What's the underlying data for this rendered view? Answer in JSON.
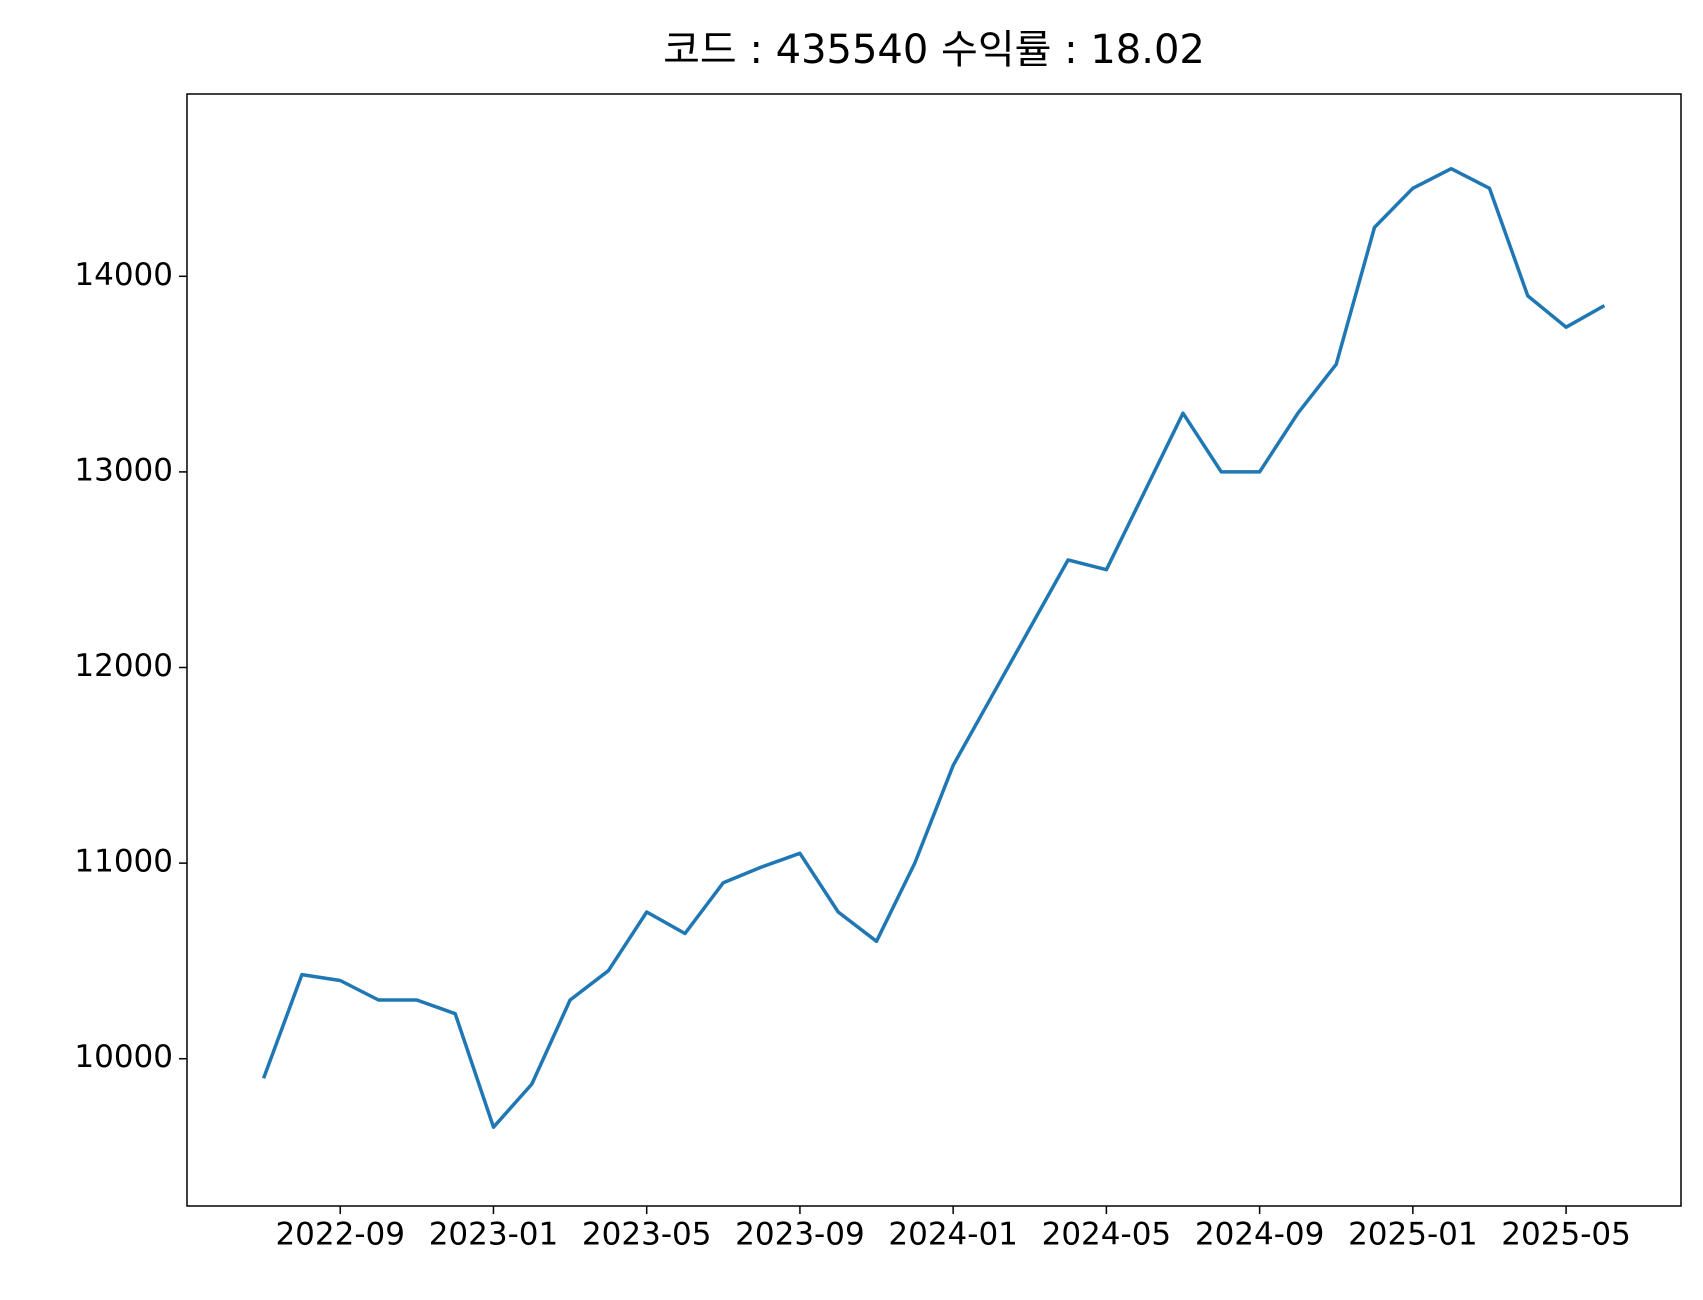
{
  "chart_data": {
    "type": "line",
    "title": "코드 : 435540 수익률 : 18.02",
    "x": [
      "2022-07",
      "2022-08",
      "2022-09",
      "2022-10",
      "2022-11",
      "2022-12",
      "2023-01",
      "2023-02",
      "2023-03",
      "2023-04",
      "2023-05",
      "2023-06",
      "2023-07",
      "2023-08",
      "2023-09",
      "2023-10",
      "2023-11",
      "2023-12",
      "2024-01",
      "2024-02",
      "2024-03",
      "2024-04",
      "2024-05",
      "2024-06",
      "2024-07",
      "2024-08",
      "2024-09",
      "2024-10",
      "2024-11",
      "2024-12",
      "2025-01",
      "2025-02",
      "2025-03",
      "2025-04",
      "2025-05",
      "2025-06"
    ],
    "series": [
      {
        "name": "435540",
        "color": "#1f77b4",
        "values": [
          9900,
          10430,
          10400,
          10300,
          10300,
          10230,
          9650,
          9870,
          10300,
          10450,
          10750,
          10640,
          10900,
          10980,
          11050,
          10750,
          10600,
          11000,
          11500,
          11850,
          12200,
          12550,
          12500,
          12900,
          13300,
          13000,
          13000,
          13300,
          13550,
          14250,
          14450,
          14550,
          14450,
          13900,
          13740,
          13850
        ]
      }
    ],
    "xlim": [
      "2022-05",
      "2025-08"
    ],
    "xticks": [
      "2022-09",
      "2023-01",
      "2023-05",
      "2023-09",
      "2024-01",
      "2024-05",
      "2024-09",
      "2025-01",
      "2025-05"
    ],
    "ylim": [
      9247,
      14932
    ],
    "yticks": [
      10000,
      11000,
      12000,
      13000,
      14000
    ],
    "grid": false
  }
}
